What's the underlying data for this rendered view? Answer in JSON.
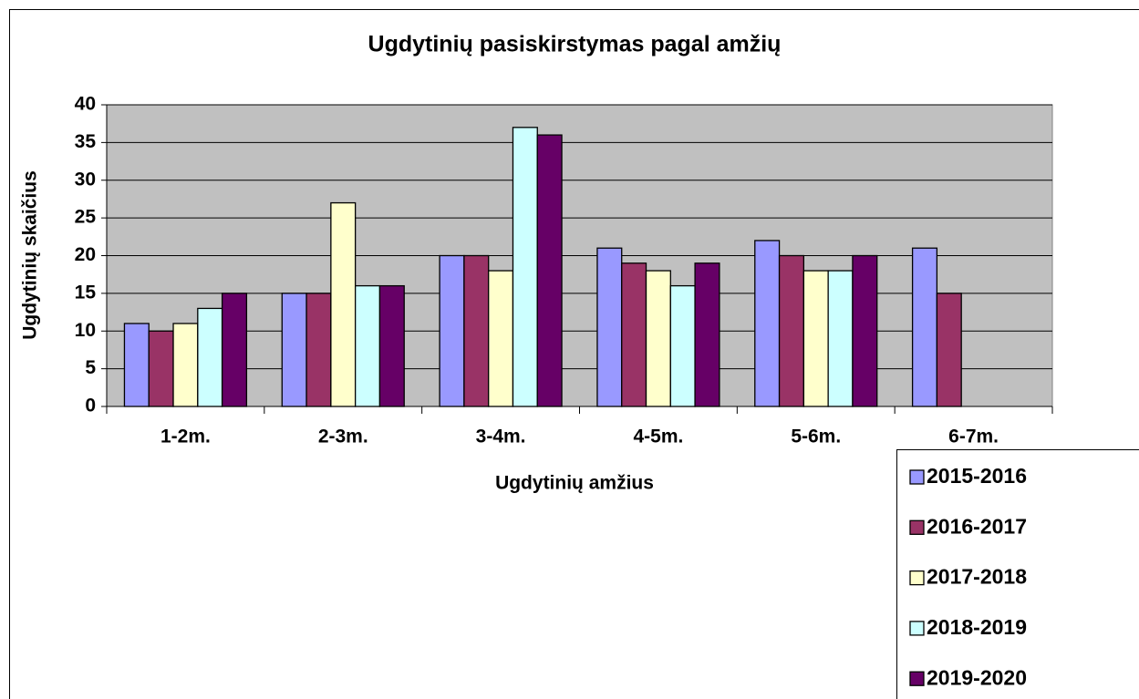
{
  "chart_data": {
    "type": "bar",
    "title": "Ugdytinių pasiskirstymas pagal amžių",
    "x_label": "Ugdytinių amžius",
    "y_label": "Ugdytinių skaičius",
    "categories": [
      "1-2m.",
      "2-3m.",
      "3-4m.",
      "4-5m.",
      "5-6m.",
      "6-7m."
    ],
    "series": [
      {
        "name": "2015-2016",
        "color": "#9999ff",
        "values": [
          11,
          15,
          20,
          21,
          22,
          21
        ]
      },
      {
        "name": "2016-2017",
        "color": "#993366",
        "values": [
          10,
          15,
          20,
          19,
          20,
          15
        ]
      },
      {
        "name": "2017-2018",
        "color": "#ffffcc",
        "values": [
          11,
          27,
          18,
          18,
          18,
          null
        ]
      },
      {
        "name": "2018-2019",
        "color": "#ccffff",
        "values": [
          13,
          16,
          37,
          16,
          18,
          null
        ]
      },
      {
        "name": "2019-2020",
        "color": "#660066",
        "values": [
          15,
          16,
          36,
          19,
          20,
          null
        ]
      }
    ],
    "ylim": [
      0,
      40
    ],
    "yticks": [
      0,
      5,
      10,
      15,
      20,
      25,
      30,
      35,
      40
    ],
    "grid": true,
    "plot_background": "#c0c0c0",
    "legend": "lower right"
  }
}
